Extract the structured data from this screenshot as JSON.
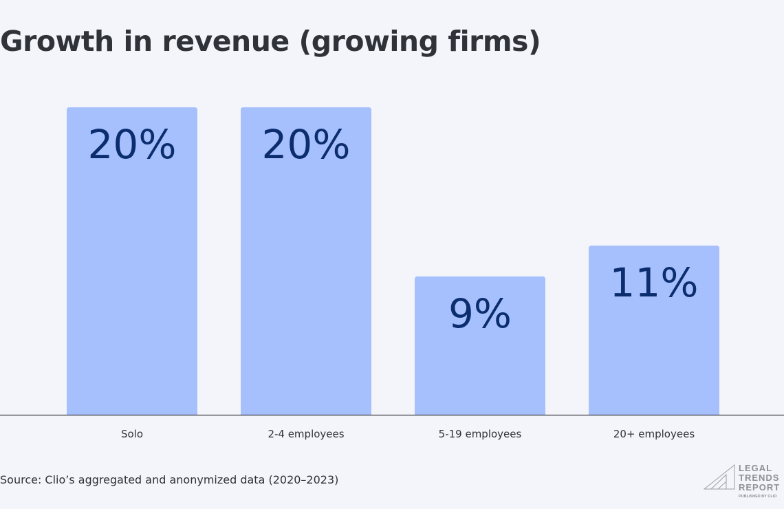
{
  "title": "Growth in revenue (growing firms)",
  "source": "Source: Clio’s aggregated and anonymized data (2020–2023)",
  "logo": {
    "lines": [
      "LEGAL",
      "TRENDS",
      "REPORT"
    ],
    "tagline": "PUBLISHED BY CLIO"
  },
  "colors": {
    "bar": "#a6bffd",
    "value_text": "#0b2d6e",
    "axis": "#3a3d44",
    "text": "#2f3238"
  },
  "chart_data": {
    "type": "bar",
    "title": "Growth in revenue (growing firms)",
    "categories": [
      "Solo",
      "2-4 employees",
      "5-19 employees",
      "20+ employees"
    ],
    "values": [
      20,
      20,
      9,
      11
    ],
    "data_labels": [
      "20%",
      "20%",
      "9%",
      "11%"
    ],
    "ylim": [
      0,
      20
    ],
    "grid": false,
    "legend": "none"
  }
}
